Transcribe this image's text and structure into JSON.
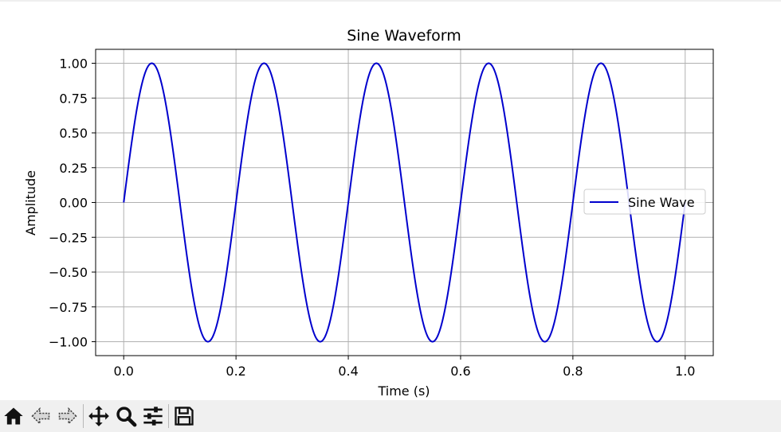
{
  "chart_data": {
    "type": "line",
    "title": "Sine Waveform",
    "xlabel": "Time (s)",
    "ylabel": "Amplitude",
    "xlim": [
      -0.05,
      1.05
    ],
    "ylim": [
      -1.1,
      1.1
    ],
    "xticks": [
      0.0,
      0.2,
      0.4,
      0.6,
      0.8,
      1.0
    ],
    "xtick_labels": [
      "0.0",
      "0.2",
      "0.4",
      "0.6",
      "0.8",
      "1.0"
    ],
    "yticks": [
      1.0,
      0.75,
      0.5,
      0.25,
      0.0,
      -0.25,
      -0.5,
      -0.75,
      -1.0
    ],
    "ytick_labels": [
      "1.00",
      "0.75",
      "0.50",
      "0.25",
      "0.00",
      "−0.25",
      "−0.50",
      "−0.75",
      "−1.00"
    ],
    "grid": true,
    "legend_position": "center-right",
    "series": [
      {
        "name": "Sine Wave",
        "color": "#0000cd",
        "function": "sin(2*pi*5*t)",
        "frequency_hz": 5,
        "amplitude": 1.0,
        "x_range": [
          0.0,
          1.0
        ]
      }
    ]
  },
  "toolbar": {
    "buttons": [
      {
        "name": "home-button",
        "icon": "home-icon"
      },
      {
        "name": "back-button",
        "icon": "arrow-left-icon"
      },
      {
        "name": "forward-button",
        "icon": "arrow-right-icon"
      },
      {
        "name": "pan-button",
        "icon": "move-icon"
      },
      {
        "name": "zoom-button",
        "icon": "zoom-icon"
      },
      {
        "name": "configure-subplots-button",
        "icon": "sliders-icon"
      },
      {
        "name": "save-button",
        "icon": "floppy-disk-icon"
      }
    ]
  }
}
